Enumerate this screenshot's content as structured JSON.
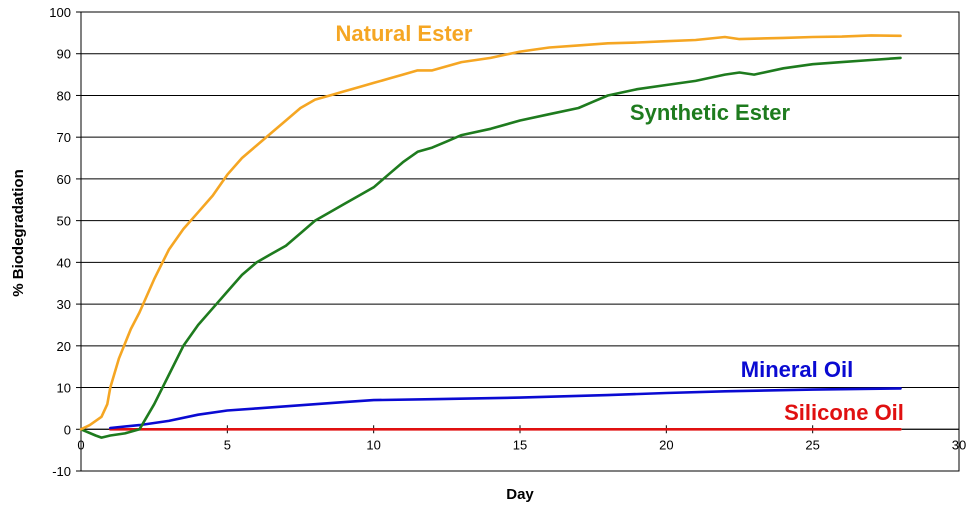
{
  "chart_data": {
    "type": "line",
    "xlabel": "Day",
    "ylabel": "% Biodegradation",
    "xlim": [
      0,
      30
    ],
    "ylim": [
      -10,
      100
    ],
    "xticks": [
      0,
      5,
      10,
      15,
      20,
      25,
      30
    ],
    "yticks": [
      -10,
      0,
      10,
      20,
      30,
      40,
      50,
      60,
      70,
      80,
      90,
      100
    ],
    "grid": "horizontal",
    "legend": "inline labels",
    "series": [
      {
        "name": "Natural Ester",
        "color": "#F5A623",
        "x": [
          0,
          0.3,
          0.7,
          0.9,
          1,
          1.3,
          1.7,
          2,
          2.5,
          3,
          3.5,
          4,
          4.5,
          5,
          5.5,
          6,
          6.5,
          7,
          7.5,
          8,
          8.5,
          9,
          9.5,
          10,
          10.5,
          11,
          11.5,
          12,
          13,
          14,
          15,
          16,
          17,
          18,
          19,
          20,
          21,
          22,
          22.5,
          23,
          24,
          25,
          26,
          27,
          28
        ],
        "values": [
          0,
          1,
          3,
          6,
          10,
          17,
          24,
          28,
          36,
          43,
          48,
          52,
          56,
          61,
          65,
          68,
          71,
          74,
          77,
          79,
          80,
          81,
          82,
          83,
          84,
          85,
          86,
          86,
          88,
          89,
          90.5,
          91.5,
          92,
          92.5,
          92.7,
          93,
          93.3,
          94,
          93.5,
          93.6,
          93.8,
          94,
          94.1,
          94.4,
          94.3
        ]
      },
      {
        "name": "Synthetic Ester",
        "color": "#1E7B1E",
        "x": [
          0,
          0.5,
          0.7,
          1,
          1.5,
          2,
          2.5,
          3,
          3.5,
          4,
          4.5,
          5,
          5.5,
          6,
          6.5,
          7,
          7.5,
          8,
          8.5,
          9,
          9.5,
          10,
          10.5,
          11,
          11.5,
          12,
          12.5,
          13,
          14,
          15,
          16,
          17,
          17.5,
          18,
          19,
          20,
          21,
          22,
          22.5,
          23,
          24,
          25,
          26,
          27,
          28
        ],
        "values": [
          0,
          -1.5,
          -2,
          -1.5,
          -1,
          0,
          6,
          13,
          20,
          25,
          29,
          33,
          37,
          40,
          42,
          44,
          47,
          50,
          52,
          54,
          56,
          58,
          61,
          64,
          66.5,
          67.5,
          69,
          70.5,
          72,
          74,
          75.5,
          77,
          78.5,
          80,
          81.5,
          82.5,
          83.5,
          85,
          85.5,
          85,
          86.5,
          87.5,
          88,
          88.5,
          89
        ]
      },
      {
        "name": "Mineral Oil",
        "color": "#0A0AD2",
        "x": [
          1,
          2,
          3,
          4,
          5,
          6,
          7,
          8,
          9,
          10,
          12,
          15,
          18,
          20,
          22,
          25,
          28
        ],
        "values": [
          0.3,
          1,
          2,
          3.5,
          4.5,
          5,
          5.5,
          6,
          6.5,
          7,
          7.2,
          7.6,
          8.2,
          8.7,
          9.1,
          9.5,
          9.8
        ]
      },
      {
        "name": "Silicone Oil",
        "color": "#E01010",
        "x": [
          1,
          28
        ],
        "values": [
          0,
          0
        ]
      }
    ]
  }
}
